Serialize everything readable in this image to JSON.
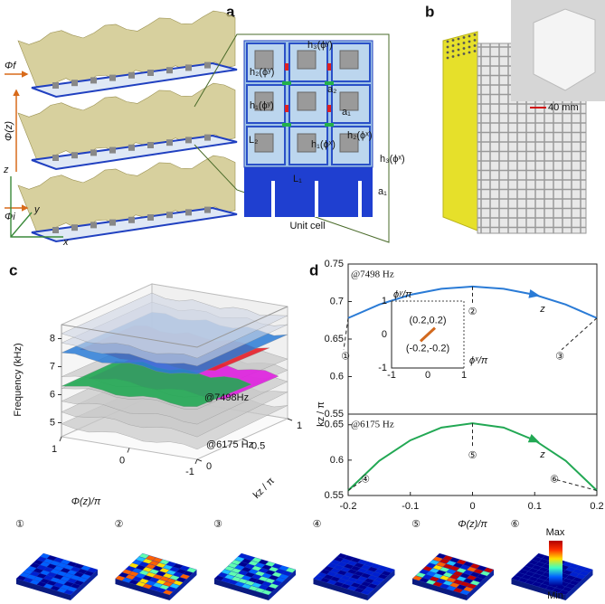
{
  "panel_labels": [
    "a",
    "b",
    "c",
    "d"
  ],
  "panel_a": {
    "phi_f": "Φf",
    "phi_z": "Φ(z)",
    "phi_i": "Φi",
    "axes": [
      "z",
      "y",
      "x"
    ],
    "unit_cell": {
      "labels": [
        "h₃(ϕʸ)",
        "h₂(ϕʸ)",
        "a₂",
        "h₁(ϕʸ)",
        "a₁",
        "h₂(ϕˣ)",
        "L₂",
        "h₁(ϕˣ)",
        "h₃(ϕˣ)",
        "L₁",
        "a₁"
      ],
      "caption": "Unit cell"
    }
  },
  "panel_b": {
    "scale_bar": "40 mm"
  },
  "chart_data": [
    {
      "type": "surface3d",
      "xlabel": "Φ(z)/π",
      "xlim": [
        1,
        -1
      ],
      "xticks": [
        1,
        0,
        -1
      ],
      "ylabel": "kz / π",
      "ylim": [
        0,
        1
      ],
      "yticks": [
        0,
        0.5,
        1
      ],
      "zlabel": "Frequency (kHz)",
      "zlim": [
        4.5,
        8.5
      ],
      "zticks": [
        5,
        6,
        7,
        8
      ],
      "annotations": [
        {
          "text": "@7498Hz",
          "color": "#e8202a"
        },
        {
          "text": "@6175 Hz",
          "color": "#e020e0"
        }
      ]
    },
    {
      "type": "line",
      "ylabel": "kz / π",
      "x": [
        -0.2,
        -0.15,
        -0.1,
        -0.05,
        0,
        0.05,
        0.1,
        0.15,
        0.2
      ],
      "xlim": [
        -0.2,
        0.2
      ],
      "ylim": [
        0.55,
        0.75
      ],
      "yticks": [
        0.55,
        0.6,
        0.65,
        0.7,
        0.75
      ],
      "series": [
        {
          "name": "z",
          "color": "#2a7bd6",
          "values": [
            0.678,
            0.696,
            0.709,
            0.717,
            0.72,
            0.717,
            0.709,
            0.696,
            0.678
          ]
        }
      ],
      "annotations": [
        {
          "text": "@7498 Hz",
          "color": "#e8202a"
        }
      ],
      "point_labels": [
        "①",
        "②",
        "③"
      ],
      "inset": {
        "xlabel": "ϕˣ/π",
        "ylabel": "ϕʸ/π",
        "xlim": [
          -1,
          1
        ],
        "ylim": [
          -1,
          1
        ],
        "xticks": [
          -1,
          0,
          1
        ],
        "yticks": [
          -1,
          0,
          1
        ],
        "segment": {
          "x": [
            -0.2,
            0.2
          ],
          "y": [
            -0.2,
            0.2
          ],
          "color": "#d2691e"
        },
        "labels": [
          "(0.2,0.2)",
          "(-0.2,-0.2)"
        ]
      }
    },
    {
      "type": "line",
      "xlabel": "Φ(z)/π",
      "x": [
        -0.2,
        -0.15,
        -0.1,
        -0.05,
        0,
        0.05,
        0.1,
        0.15,
        0.2
      ],
      "xlim": [
        -0.2,
        0.2
      ],
      "xticks": [
        -0.2,
        -0.1,
        0,
        0.1,
        0.2
      ],
      "ylim": [
        0.55,
        0.665
      ],
      "yticks": [
        0.55,
        0.6,
        0.65
      ],
      "series": [
        {
          "name": "z",
          "color": "#22a854",
          "values": [
            0.557,
            0.599,
            0.628,
            0.646,
            0.652,
            0.646,
            0.628,
            0.599,
            0.557
          ]
        }
      ],
      "annotations": [
        {
          "text": "@6175 Hz",
          "color": "#e020e0"
        }
      ],
      "point_labels": [
        "④",
        "⑤",
        "⑥"
      ]
    }
  ],
  "mode_shapes": {
    "labels": [
      "①",
      "②",
      "③",
      "④",
      "⑤",
      "⑥"
    ],
    "colorbar": {
      "max": "Max",
      "min": "Min"
    }
  }
}
